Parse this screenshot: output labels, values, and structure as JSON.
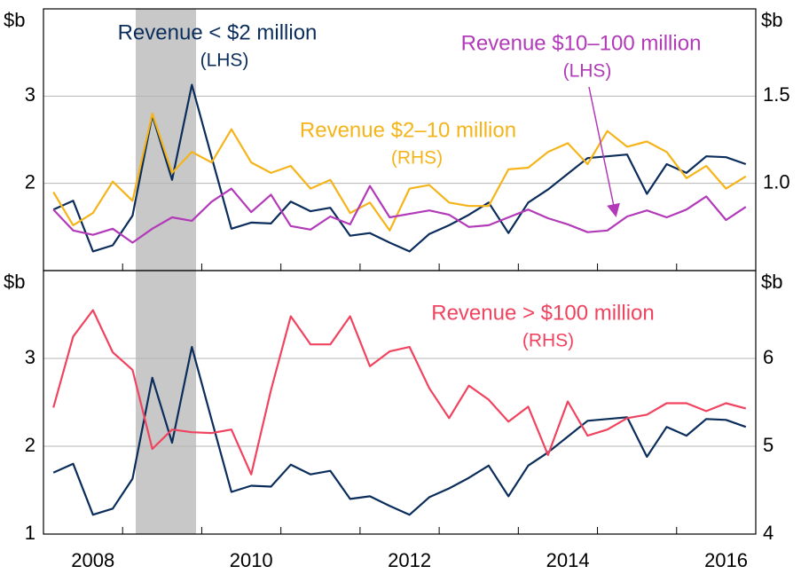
{
  "chart_data": [
    {
      "type": "line",
      "ylabel": "$b",
      "y2label": "$b",
      "ylim": [
        1,
        4
      ],
      "yticks": [
        2,
        3
      ],
      "y2lim": [
        0.5,
        2
      ],
      "y2ticks": [
        {
          "value": 1,
          "label": "1.0"
        },
        1.5
      ],
      "grid": true,
      "series": [
        {
          "name": "Revenue < $2 million",
          "note": "(LHS)",
          "color": "#0b2d5b",
          "values": [
            1.7,
            1.8,
            1.22,
            1.29,
            1.63,
            2.78,
            2.04,
            3.13,
            2.3,
            1.48,
            1.55,
            1.54,
            1.79,
            1.68,
            1.72,
            1.4,
            1.43,
            1.32,
            1.22,
            1.42,
            1.52,
            1.64,
            1.78,
            1.43,
            1.78,
            1.93,
            2.11,
            2.29,
            2.31,
            2.33,
            1.88,
            2.22,
            2.12,
            2.31,
            2.3,
            2.22
          ]
        },
        {
          "name": "Revenue $2–10 million",
          "note": "(RHS)",
          "color": "#f4b41a",
          "axis": "y2",
          "values": [
            0.95,
            0.76,
            0.83,
            1.01,
            0.9,
            1.4,
            1.06,
            1.18,
            1.12,
            1.31,
            1.12,
            1.06,
            1.1,
            0.97,
            1.02,
            0.83,
            0.89,
            0.73,
            0.97,
            0.99,
            0.89,
            0.87,
            0.87,
            1.08,
            1.09,
            1.18,
            1.23,
            1.11,
            1.3,
            1.21,
            1.24,
            1.18,
            1.03,
            1.1,
            0.97,
            1.04
          ]
        },
        {
          "name": "Revenue $10–100 million",
          "note": "(LHS)",
          "color": "#b23ab9",
          "values": [
            1.7,
            1.46,
            1.41,
            1.48,
            1.32,
            1.48,
            1.61,
            1.57,
            1.79,
            1.94,
            1.67,
            1.87,
            1.51,
            1.47,
            1.62,
            1.53,
            1.97,
            1.61,
            1.65,
            1.69,
            1.64,
            1.5,
            1.52,
            1.61,
            1.7,
            1.6,
            1.53,
            1.44,
            1.46,
            1.62,
            1.69,
            1.61,
            1.7,
            1.85,
            1.58,
            1.73
          ]
        }
      ]
    },
    {
      "type": "line",
      "ylabel": "$b",
      "y2label": "$b",
      "categories": [
        "2008",
        null,
        null,
        null,
        null,
        null,
        null,
        null,
        "2010",
        null,
        null,
        null,
        null,
        null,
        null,
        null,
        "2012",
        null,
        null,
        null,
        null,
        null,
        null,
        null,
        "2014",
        null,
        null,
        null,
        null,
        null,
        null,
        null,
        "2016",
        null,
        null,
        null
      ],
      "ylim": [
        1,
        4
      ],
      "yticks": [
        1,
        2,
        3
      ],
      "y2lim": [
        4,
        7
      ],
      "y2ticks": [
        4,
        5,
        6
      ],
      "grid": true,
      "series": [
        {
          "color": "#0b2d5b",
          "values": [
            1.7,
            1.8,
            1.22,
            1.29,
            1.63,
            2.78,
            2.04,
            3.13,
            2.3,
            1.48,
            1.55,
            1.54,
            1.79,
            1.68,
            1.72,
            1.4,
            1.43,
            1.32,
            1.22,
            1.42,
            1.52,
            1.64,
            1.78,
            1.43,
            1.78,
            1.93,
            2.11,
            2.29,
            2.31,
            2.33,
            1.88,
            2.22,
            2.12,
            2.31,
            2.3,
            2.22
          ]
        },
        {
          "name": "Revenue > $100 million",
          "note": "(RHS)",
          "color": "#f0435f",
          "axis": "y2",
          "values": [
            5.44,
            6.25,
            6.55,
            6.07,
            5.87,
            4.97,
            5.19,
            5.16,
            5.15,
            5.19,
            4.68,
            5.64,
            6.48,
            6.16,
            6.16,
            6.48,
            5.91,
            6.08,
            6.13,
            5.66,
            5.32,
            5.69,
            5.53,
            5.28,
            5.45,
            4.9,
            5.51,
            5.12,
            5.19,
            5.32,
            5.36,
            5.49,
            5.49,
            5.4,
            5.49,
            5.43
          ]
        }
      ]
    }
  ]
}
